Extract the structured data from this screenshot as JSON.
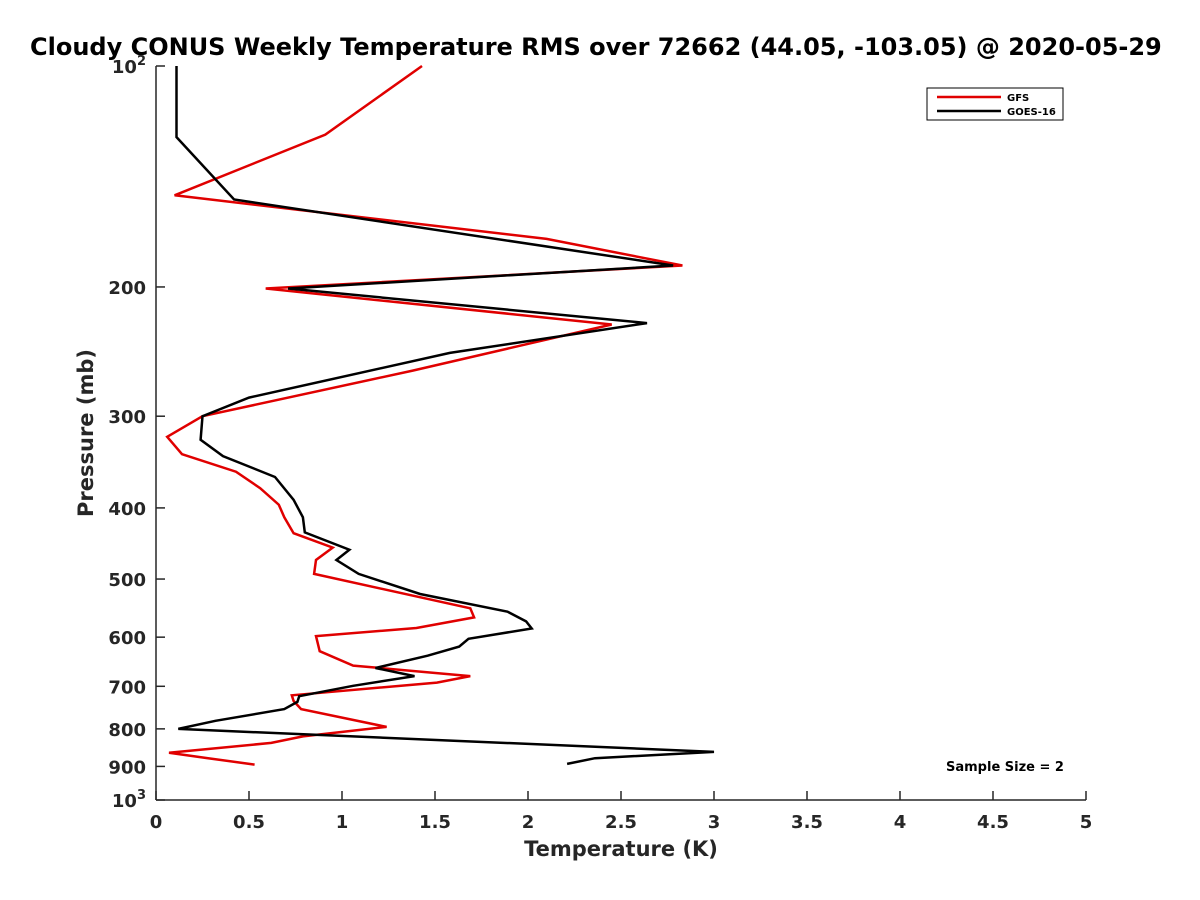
{
  "chart_data": {
    "type": "line",
    "title": "Cloudy CONUS Weekly Temperature RMS over 72662 (44.05, -103.05) @ 2020-05-29",
    "xlabel": "Temperature (K)",
    "ylabel": "Pressure (mb)",
    "xlim": [
      0,
      5
    ],
    "ylim": [
      100,
      1000
    ],
    "y_scale": "log",
    "y_reversed": true,
    "x_ticks": [
      "0",
      "0.5",
      "1",
      "1.5",
      "2",
      "2.5",
      "3",
      "3.5",
      "4",
      "4.5",
      "5"
    ],
    "y_ticks": [
      {
        "value": 100,
        "base": "10",
        "exp": "2"
      },
      {
        "value": 200,
        "label": "200"
      },
      {
        "value": 300,
        "label": "300"
      },
      {
        "value": 400,
        "label": "400"
      },
      {
        "value": 500,
        "label": "500"
      },
      {
        "value": 600,
        "label": "600"
      },
      {
        "value": 700,
        "label": "700"
      },
      {
        "value": 800,
        "label": "800"
      },
      {
        "value": 900,
        "label": "900"
      },
      {
        "value": 1000,
        "base": "10",
        "exp": "3"
      }
    ],
    "legend_position": "top-right",
    "annotation": "Sample Size = 2",
    "series": [
      {
        "name": "GFS",
        "color": "#e00000",
        "points": [
          [
            1.43,
            100
          ],
          [
            0.91,
            124
          ],
          [
            0.1,
            150
          ],
          [
            2.1,
            172
          ],
          [
            2.83,
            187
          ],
          [
            0.59,
            201
          ],
          [
            2.45,
            225
          ],
          [
            1.38,
            260
          ],
          [
            0.25,
            300
          ],
          [
            0.06,
            320
          ],
          [
            0.14,
            338
          ],
          [
            0.43,
            357
          ],
          [
            0.56,
            376
          ],
          [
            0.66,
            396
          ],
          [
            0.69,
            412
          ],
          [
            0.74,
            433
          ],
          [
            0.95,
            453
          ],
          [
            0.86,
            471
          ],
          [
            0.85,
            492
          ],
          [
            1.69,
            548
          ],
          [
            1.71,
            564
          ],
          [
            1.4,
            583
          ],
          [
            0.86,
            598
          ],
          [
            0.88,
            627
          ],
          [
            1.06,
            656
          ],
          [
            1.69,
            678
          ],
          [
            1.51,
            692
          ],
          [
            0.73,
            720
          ],
          [
            0.74,
            733
          ],
          [
            0.78,
            752
          ],
          [
            1.24,
            795
          ],
          [
            0.79,
            819
          ],
          [
            0.62,
            836
          ],
          [
            0.07,
            862
          ],
          [
            0.28,
            877
          ],
          [
            0.53,
            895
          ]
        ]
      },
      {
        "name": "GOES-16",
        "color": "#000000",
        "points": [
          [
            0.11,
            100
          ],
          [
            0.11,
            125
          ],
          [
            0.42,
            152
          ],
          [
            2.78,
            187
          ],
          [
            0.71,
            201
          ],
          [
            2.64,
            224
          ],
          [
            1.58,
            246
          ],
          [
            0.5,
            283
          ],
          [
            0.25,
            300
          ],
          [
            0.24,
            323
          ],
          [
            0.36,
            340
          ],
          [
            0.64,
            363
          ],
          [
            0.74,
            390
          ],
          [
            0.79,
            412
          ],
          [
            0.8,
            432
          ],
          [
            1.04,
            456
          ],
          [
            0.97,
            471
          ],
          [
            1.09,
            492
          ],
          [
            1.42,
            524
          ],
          [
            1.89,
            554
          ],
          [
            1.99,
            571
          ],
          [
            2.02,
            584
          ],
          [
            1.68,
            603
          ],
          [
            1.63,
            618
          ],
          [
            1.46,
            636
          ],
          [
            1.18,
            661
          ],
          [
            1.39,
            678
          ],
          [
            1.06,
            699
          ],
          [
            0.77,
            722
          ],
          [
            0.76,
            735
          ],
          [
            0.69,
            752
          ],
          [
            0.32,
            780
          ],
          [
            0.12,
            800
          ],
          [
            3.0,
            860
          ],
          [
            2.36,
            877
          ],
          [
            2.21,
            893
          ]
        ]
      }
    ]
  }
}
